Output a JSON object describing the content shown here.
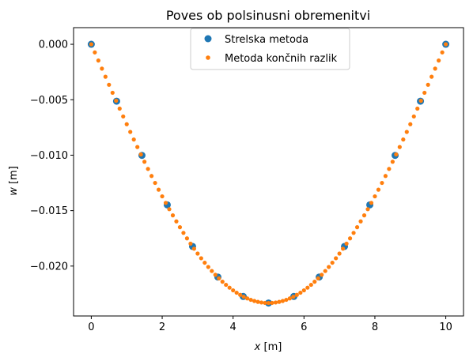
{
  "chart_data": {
    "type": "scatter",
    "title": "Poves ob polsinusni obremenitvi",
    "xlabel": {
      "var": "x",
      "unit": " [m]"
    },
    "ylabel": {
      "var": "w",
      "unit": " [m]"
    },
    "xlim": [
      -0.5,
      10.5
    ],
    "ylim": [
      -0.0245,
      0.0015
    ],
    "xticks": [
      0,
      2,
      4,
      6,
      8,
      10
    ],
    "xtick_labels": [
      "0",
      "2",
      "4",
      "6",
      "8",
      "10"
    ],
    "yticks": [
      0.0,
      -0.005,
      -0.01,
      -0.015,
      -0.02
    ],
    "ytick_labels": [
      "0.000",
      "−0.005",
      "−0.010",
      "−0.015",
      "−0.020"
    ],
    "grid": false,
    "legend_position": "upper center",
    "series": [
      {
        "name": "Strelska metoda",
        "color": "#1f77b4",
        "marker": "large-dot",
        "x": [
          0,
          0.714,
          1.429,
          2.143,
          2.857,
          3.571,
          4.286,
          5.0,
          5.714,
          6.429,
          7.143,
          7.857,
          8.571,
          9.286,
          10.0
        ],
        "y": [
          0.0,
          -0.00513,
          -0.01002,
          -0.01448,
          -0.01823,
          -0.02099,
          -0.02274,
          -0.02333,
          -0.02274,
          -0.02099,
          -0.01823,
          -0.01448,
          -0.01002,
          -0.00513,
          0.0
        ],
        "note_formula": "dense series: x from 0 to 10 step 0.1"
      },
      {
        "name": "Metoda končnih razlik",
        "color": "#ff7f0e",
        "marker": "small-dot",
        "x_start": 0,
        "x_end": 10,
        "x_step": 0.1,
        "amplitude": -0.02333
      }
    ]
  }
}
